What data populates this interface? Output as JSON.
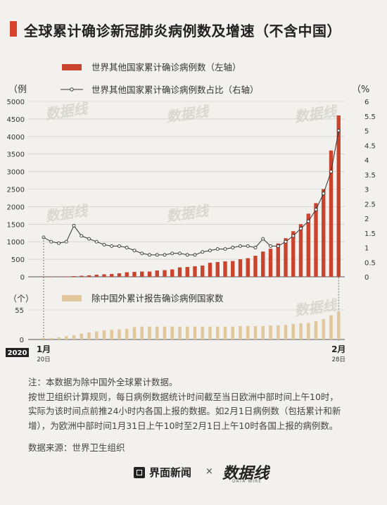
{
  "title": "全球累计确诊新冠肺炎病例数及增速（不含中国）",
  "legend": {
    "bar": "世界其他国家累计确诊病例数（左轴）",
    "line": "世界其他国家累计确诊病例数占比（右轴）",
    "countries": "除中国外累计报告确诊病例国家数"
  },
  "axis_units": {
    "left": "（例",
    "right": "（%",
    "bottom_left": "（个）"
  },
  "year_badge": "2020",
  "x_start": {
    "month": "1月",
    "day": "20日"
  },
  "x_end": {
    "month": "2月",
    "day": "28日"
  },
  "notes": [
    "注：本数据为除中国外全球累计数据。",
    "按世卫组织计算规则，每日病例数据统计时间截至当日欧洲中部时间上午10时，",
    "实际为该时间点前推24小时内各国上报的数据。如2月1日病例数（包括累计和新",
    "增），为欧洲中部时间1月31日上午10时至2月1日上午10时各国上报的病例数。"
  ],
  "source": "数据来源：世界卫生组织",
  "footer": {
    "brand1": "界面新闻",
    "times": "×",
    "brand2": "数据线",
    "brand2_sub": "DATA WIRE"
  },
  "watermark": "数据线",
  "colors": {
    "bar": "#c9432d",
    "line": "#333333",
    "countries_bar": "#e3c79c",
    "accent": "#d9432c"
  },
  "chart_data": [
    {
      "type": "bar+line",
      "x": [
        "1/20",
        "1/21",
        "1/22",
        "1/23",
        "1/24",
        "1/25",
        "1/26",
        "1/27",
        "1/28",
        "1/29",
        "1/30",
        "1/31",
        "2/1",
        "2/2",
        "2/3",
        "2/4",
        "2/5",
        "2/6",
        "2/7",
        "2/8",
        "2/9",
        "2/10",
        "2/11",
        "2/12",
        "2/13",
        "2/14",
        "2/15",
        "2/16",
        "2/17",
        "2/18",
        "2/19",
        "2/20",
        "2/21",
        "2/22",
        "2/23",
        "2/24",
        "2/25",
        "2/26",
        "2/27",
        "2/28"
      ],
      "series": [
        {
          "name": "世界其他国家累计确诊病例数（左轴）",
          "axis": "left",
          "type": "bar",
          "values": [
            4,
            6,
            7,
            10,
            20,
            30,
            40,
            60,
            70,
            80,
            100,
            130,
            140,
            150,
            150,
            180,
            190,
            210,
            270,
            280,
            300,
            320,
            400,
            420,
            440,
            450,
            500,
            530,
            600,
            720,
            800,
            950,
            1100,
            1300,
            1500,
            1800,
            2100,
            2500,
            3600,
            4600
          ]
        },
        {
          "name": "世界其他国家累计确诊病例数占比（右轴）",
          "axis": "right",
          "type": "line",
          "values": [
            1.35,
            1.2,
            1.15,
            1.2,
            1.75,
            1.4,
            1.3,
            1.2,
            1.1,
            1.05,
            1.05,
            1.0,
            0.9,
            0.8,
            0.75,
            0.75,
            0.75,
            0.8,
            0.8,
            0.75,
            0.75,
            0.85,
            0.9,
            0.95,
            0.95,
            1.0,
            1.05,
            1.05,
            1.0,
            1.3,
            1.05,
            1.05,
            1.2,
            1.4,
            1.65,
            1.9,
            2.3,
            2.85,
            3.6,
            5.0
          ]
        }
      ],
      "left_ticks": [
        0,
        500,
        1000,
        1500,
        2000,
        2500,
        3000,
        3500,
        4000,
        4500,
        5000
      ],
      "right_ticks": [
        0,
        0.5,
        1,
        1.5,
        2,
        2.5,
        3,
        3.5,
        4,
        4.5,
        5,
        5.5,
        6
      ],
      "ylim_left": [
        0,
        5000
      ],
      "ylim_right": [
        0,
        6
      ]
    },
    {
      "type": "bar",
      "x": [
        "1/20",
        "1/21",
        "1/22",
        "1/23",
        "1/24",
        "1/25",
        "1/26",
        "1/27",
        "1/28",
        "1/29",
        "1/30",
        "1/31",
        "2/1",
        "2/2",
        "2/3",
        "2/4",
        "2/5",
        "2/6",
        "2/7",
        "2/8",
        "2/9",
        "2/10",
        "2/11",
        "2/12",
        "2/13",
        "2/14",
        "2/15",
        "2/16",
        "2/17",
        "2/18",
        "2/19",
        "2/20",
        "2/21",
        "2/22",
        "2/23",
        "2/24",
        "2/25",
        "2/26",
        "2/27",
        "2/28"
      ],
      "series": [
        {
          "name": "除中国外累计报告确诊病例国家数",
          "values": [
            3,
            3,
            4,
            6,
            8,
            11,
            13,
            15,
            17,
            18,
            19,
            20,
            23,
            24,
            24,
            24,
            24,
            24,
            24,
            24,
            24,
            24,
            24,
            24,
            24,
            24,
            25,
            25,
            25,
            25,
            26,
            26,
            27,
            29,
            30,
            31,
            34,
            38,
            45,
            52
          ]
        }
      ],
      "ticks": [
        0,
        55
      ],
      "ylim": [
        0,
        55
      ]
    }
  ]
}
